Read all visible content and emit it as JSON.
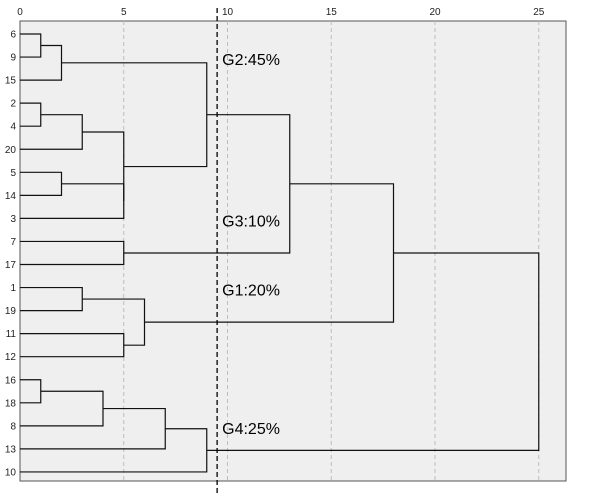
{
  "chart_data": {
    "type": "dendrogram",
    "x_ticks": [
      0,
      5,
      10,
      15,
      20,
      25
    ],
    "xlim": [
      0,
      26.3
    ],
    "grid": true,
    "leaves": [
      "6",
      "9",
      "15",
      "2",
      "4",
      "20",
      "5",
      "14",
      "3",
      "7",
      "17",
      "1",
      "19",
      "11",
      "12",
      "16",
      "18",
      "8",
      "13",
      "10"
    ],
    "merges": [
      {
        "a": "L:6",
        "b": "L:9",
        "height": 1.0
      },
      {
        "a": "M:0",
        "b": "L:15",
        "height": 2.0
      },
      {
        "a": "L:2",
        "b": "L:4",
        "height": 1.0
      },
      {
        "a": "M:2",
        "b": "L:20",
        "height": 3.0
      },
      {
        "a": "L:5",
        "b": "L:14",
        "height": 2.0
      },
      {
        "a": "M:4",
        "b": "L:3",
        "height": 5.0
      },
      {
        "a": "M:3",
        "b": "M:5",
        "height": 5.0
      },
      {
        "a": "M:1",
        "b": "M:6",
        "height": 9.0
      },
      {
        "a": "L:7",
        "b": "L:17",
        "height": 5.0
      },
      {
        "a": "M:7",
        "b": "M:8",
        "height": 13.0
      },
      {
        "a": "L:1",
        "b": "L:19",
        "height": 3.0
      },
      {
        "a": "L:11",
        "b": "L:12",
        "height": 5.0
      },
      {
        "a": "M:10",
        "b": "M:11",
        "height": 6.0
      },
      {
        "a": "M:9",
        "b": "M:12",
        "height": 18.0
      },
      {
        "a": "L:16",
        "b": "L:18",
        "height": 1.0
      },
      {
        "a": "M:14",
        "b": "L:8",
        "height": 4.0
      },
      {
        "a": "M:15",
        "b": "L:13",
        "height": 7.0
      },
      {
        "a": "M:16",
        "b": "L:10",
        "height": 9.0
      },
      {
        "a": "M:13",
        "b": "M:17",
        "height": 25.0
      }
    ],
    "cut_line": 9.5,
    "annotations": [
      {
        "text": "G2:45%",
        "leaf_anchor": "15"
      },
      {
        "text": "G3:10%",
        "leaf_anchor": "7"
      },
      {
        "text": "G1:20%",
        "leaf_anchor": "19"
      },
      {
        "text": "G4:25%",
        "leaf_anchor": "13"
      }
    ]
  }
}
